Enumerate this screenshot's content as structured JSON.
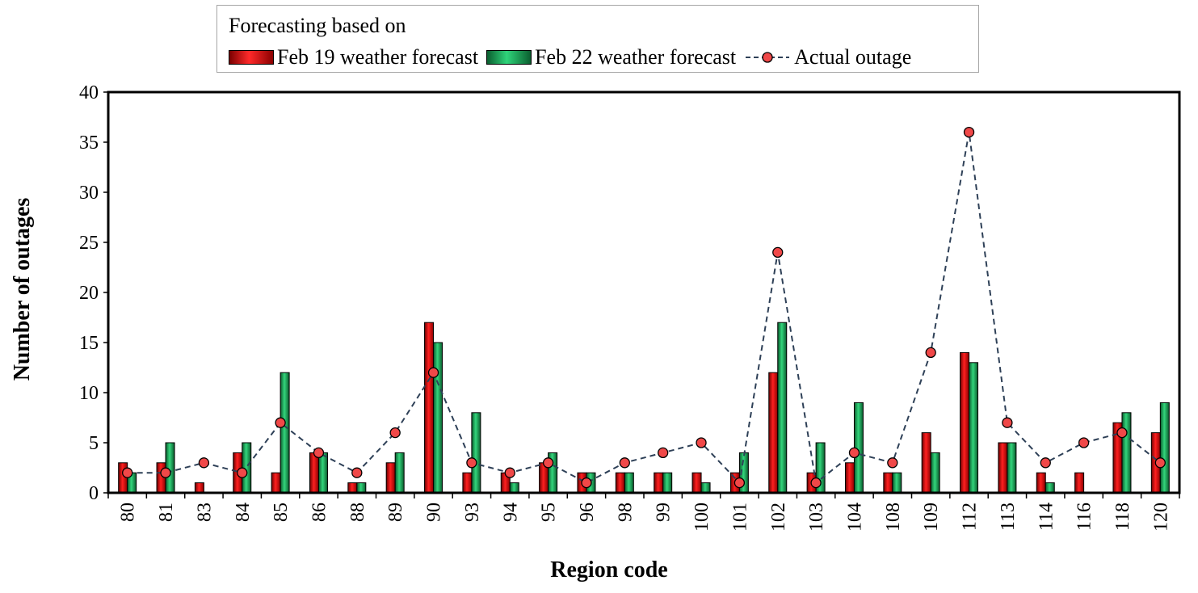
{
  "chart_data": {
    "type": "bar",
    "legend_title": "Forecasting based on",
    "legend_position": "top",
    "xlabel": "Region code",
    "ylabel": "Number of outages",
    "ylim": [
      0,
      40
    ],
    "yticks": [
      0,
      5,
      10,
      15,
      20,
      25,
      30,
      35,
      40
    ],
    "categories": [
      "80",
      "81",
      "83",
      "84",
      "85",
      "86",
      "88",
      "89",
      "90",
      "93",
      "94",
      "95",
      "96",
      "98",
      "99",
      "100",
      "101",
      "102",
      "103",
      "104",
      "108",
      "109",
      "112",
      "113",
      "114",
      "116",
      "118",
      "120"
    ],
    "series": [
      {
        "name": "Feb 19 weather forecast",
        "kind": "bar",
        "color": "#d40000",
        "values": [
          3,
          3,
          1,
          4,
          2,
          4,
          1,
          3,
          17,
          2,
          2,
          3,
          2,
          2,
          2,
          2,
          2,
          12,
          2,
          3,
          2,
          6,
          14,
          5,
          2,
          2,
          7,
          6
        ]
      },
      {
        "name": "Feb 22 weather forecast",
        "kind": "bar",
        "color": "#10a050",
        "values": [
          2,
          5,
          0,
          5,
          12,
          4,
          1,
          4,
          15,
          8,
          1,
          4,
          2,
          2,
          2,
          1,
          4,
          17,
          5,
          9,
          2,
          4,
          13,
          5,
          1,
          0,
          8,
          9
        ]
      },
      {
        "name": "Actual outage",
        "kind": "line",
        "color": "#f04848",
        "line_color": "#2e4057",
        "values": [
          2,
          2,
          3,
          2,
          7,
          4,
          2,
          6,
          12,
          3,
          2,
          3,
          1,
          3,
          4,
          5,
          1,
          24,
          1,
          4,
          3,
          14,
          36,
          7,
          3,
          5,
          6,
          3
        ]
      }
    ]
  }
}
